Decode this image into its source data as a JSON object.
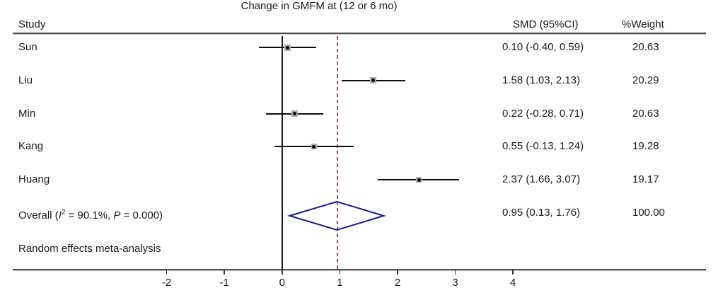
{
  "title": "Change in GMFM at (12 or 6 mo)",
  "columns": {
    "study": "Study",
    "smd": "SMD (95%CI)",
    "weight": "%Weight"
  },
  "note": "Random effects meta-analysis",
  "overall": {
    "label_prefix": "Overall (",
    "i_label": "I",
    "i_sup": "2",
    "mid": " = 90.1%, ",
    "p_label": "P",
    "suffix": " = 0.000)",
    "smd_text": "0.95 (0.13, 1.76)",
    "weight_text": "100.00"
  },
  "chart_data": {
    "type": "forest",
    "title": "Change in GMFM at (12 or 6 mo)",
    "x_ticks": [
      -2,
      -1,
      0,
      1,
      2,
      3,
      4
    ],
    "xlim": [
      -2.7,
      4.6
    ],
    "zero_line_x": 0,
    "overall_dashed_line_x": 0.95,
    "studies": [
      {
        "name": "Sun",
        "est": 0.1,
        "lo": -0.4,
        "hi": 0.59,
        "smd_text": "0.10 (-0.40, 0.59)",
        "weight": 20.63,
        "weight_text": "20.63"
      },
      {
        "name": "Liu",
        "est": 1.58,
        "lo": 1.03,
        "hi": 2.13,
        "smd_text": "1.58 (1.03, 2.13)",
        "weight": 20.29,
        "weight_text": "20.29"
      },
      {
        "name": "Min",
        "est": 0.22,
        "lo": -0.28,
        "hi": 0.71,
        "smd_text": "0.22 (-0.28, 0.71)",
        "weight": 20.63,
        "weight_text": "20.63"
      },
      {
        "name": "Kang",
        "est": 0.55,
        "lo": -0.13,
        "hi": 1.24,
        "smd_text": "0.55 (-0.13, 1.24)",
        "weight": 19.28,
        "weight_text": "19.28"
      },
      {
        "name": "Huang",
        "est": 2.37,
        "lo": 1.66,
        "hi": 3.07,
        "smd_text": "2.37 (1.66, 3.07)",
        "weight": 19.17,
        "weight_text": "19.17"
      }
    ],
    "overall": {
      "label": "Overall (I2 = 90.1%, P = 0.000)",
      "est": 0.95,
      "lo": 0.13,
      "hi": 1.76,
      "i_squared_pct": 90.1,
      "p_value": 0.0,
      "smd_text": "0.95 (0.13, 1.76)",
      "weight_text": "100.00"
    },
    "heterogeneity_model": "Random effects meta-analysis",
    "colors": {
      "diamond_stroke": "#1a1a8c",
      "dashed_line": "#9c5360",
      "ci_line": "#0d0d0d",
      "marker_box": "#ababab",
      "marker_dot": "#000000",
      "axis_line": "#4f4f4f"
    }
  }
}
